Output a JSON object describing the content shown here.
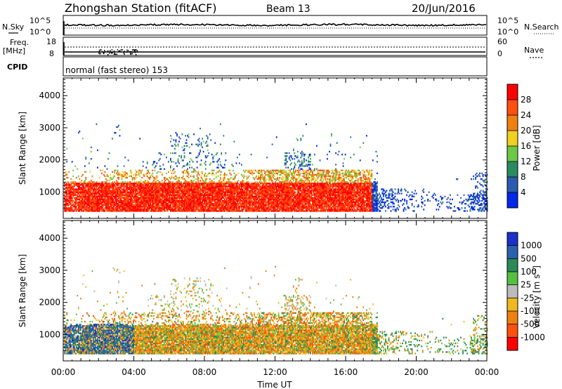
{
  "header": {
    "station": "Zhongshan Station (fitACF)",
    "beam": "Beam 13",
    "date": "20/Jun/2016"
  },
  "status_panels": {
    "nsky_label": "N.Sky",
    "nsky_ticks": [
      "10^5",
      "10^0"
    ],
    "nsearch_label": "N.Search",
    "nsearch_ticks": [
      "10^5",
      "10^0"
    ],
    "freq_label": "Freq.",
    "freq_unit": "[MHz]",
    "freq_ticks": [
      "18",
      "8"
    ],
    "nave_label": "Nave",
    "nave_ticks": [
      "60",
      "0"
    ],
    "cpid_label": "CPID",
    "cpid_text": "normal (fast stereo) 153"
  },
  "chart_data": [
    {
      "type": "heatmap",
      "name": "power-panel",
      "ylabel": "Slant Range [km]",
      "yticks": [
        "1000",
        "2000",
        "3000",
        "4000"
      ],
      "ylim": [
        180,
        4550
      ],
      "xlim": [
        0,
        24
      ],
      "colorbar_label": "Power [dB]",
      "colorbar_ticks": [
        "4",
        "8",
        "12",
        "16",
        "20",
        "24",
        "28"
      ],
      "colorbar_colors": [
        "#0028e8",
        "#2a5bb0",
        "#2a8a60",
        "#6cc848",
        "#f0d020",
        "#f08010",
        "#ff5010",
        "#ff0000"
      ]
    },
    {
      "type": "heatmap",
      "name": "velocity-panel",
      "ylabel": "Slant Range [km]",
      "yticks": [
        "1000",
        "2000",
        "3000",
        "4000"
      ],
      "ylim": [
        180,
        4550
      ],
      "xlim": [
        0,
        24
      ],
      "xticks": [
        "00:00",
        "04:00",
        "08:00",
        "12:00",
        "16:00",
        "20:00",
        "00:00"
      ],
      "xlabel": "Time UT",
      "colorbar_label": "Velocity [m s",
      "colorbar_label_sup": "-1",
      "colorbar_ticks": [
        "1000",
        "500",
        "100",
        "25",
        "-25",
        "-100",
        "-500",
        "-1000"
      ],
      "colorbar_colors": [
        "#1a30c8",
        "#2a60b0",
        "#2a8a58",
        "#56c040",
        "#bcbcbc",
        "#f0b820",
        "#f08010",
        "#ff5010",
        "#ff0000"
      ]
    }
  ]
}
